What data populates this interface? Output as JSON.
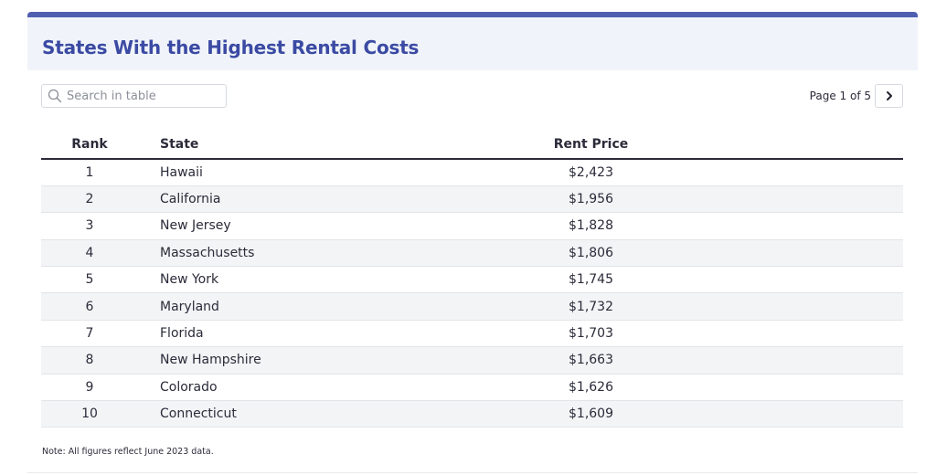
{
  "header": {
    "title": "States With the Highest Rental Costs",
    "accent": "#4f5fb0"
  },
  "search": {
    "placeholder": "Search in table",
    "value": ""
  },
  "pagination": {
    "label": "Page 1 of 5",
    "current_page": 1,
    "total_pages": 5
  },
  "table": {
    "columns": [
      "Rank",
      "State",
      "Rent Price"
    ],
    "rows": [
      [
        "1",
        "Hawaii",
        "$2,423"
      ],
      [
        "2",
        "California",
        "$1,956"
      ],
      [
        "3",
        "New Jersey",
        "$1,828"
      ],
      [
        "4",
        "Massachusetts",
        "$1,806"
      ],
      [
        "5",
        "New York",
        "$1,745"
      ],
      [
        "6",
        "Maryland",
        "$1,732"
      ],
      [
        "7",
        "Florida",
        "$1,703"
      ],
      [
        "8",
        "New Hampshire",
        "$1,663"
      ],
      [
        "9",
        "Colorado",
        "$1,626"
      ],
      [
        "10",
        "Connecticut",
        "$1,609"
      ]
    ]
  },
  "footer": {
    "note": "Note: All figures reflect June 2023 data."
  }
}
